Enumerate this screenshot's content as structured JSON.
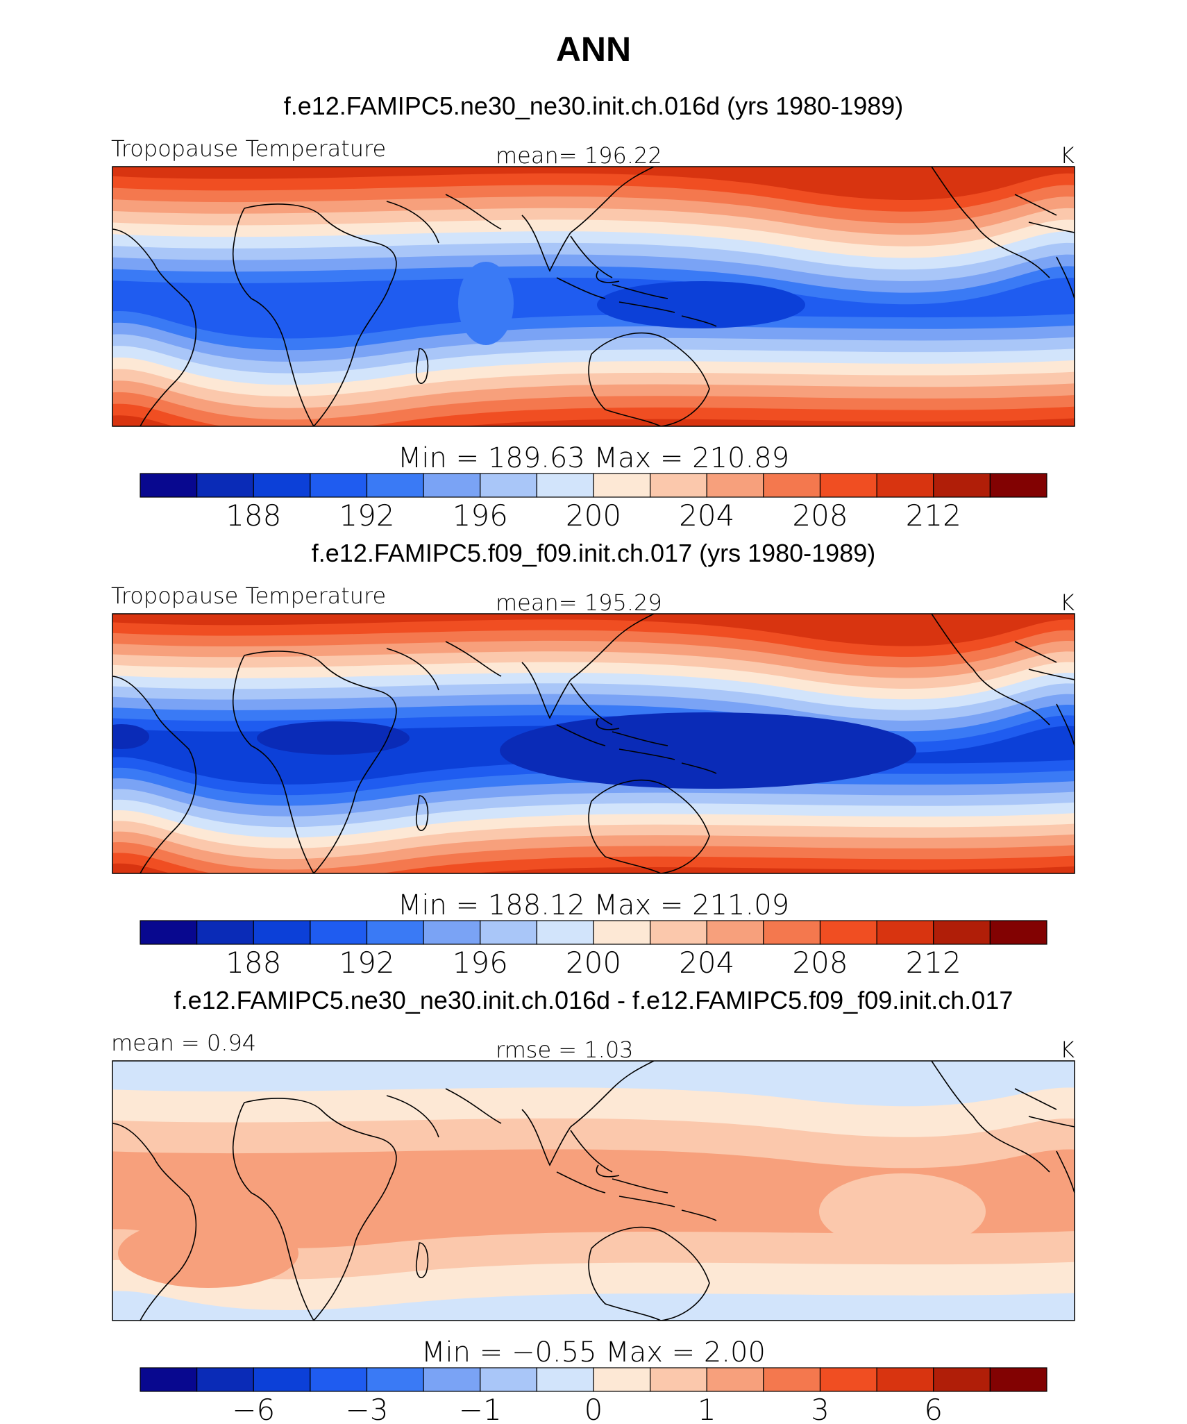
{
  "title": "ANN",
  "colors": [
    "#08088f",
    "#0a2bb7",
    "#0c40d8",
    "#1f5cf0",
    "#3a7af5",
    "#7aa3f5",
    "#a9c6f8",
    "#d2e4fb",
    "#fde8d5",
    "#fbc8ac",
    "#f7a07c",
    "#f4784e",
    "#f04e22",
    "#d83410",
    "#b01e08",
    "#820202"
  ],
  "panels": [
    {
      "title": "f.e12.FAMIPC5.ne30_ne30.init.ch.016d (yrs 1980-1989)",
      "left_label": "Tropopause Temperature",
      "center_label": "mean=  196.22",
      "units": "K",
      "minmax": "Min  =  189.63  Max  =  210.89",
      "colorbar_ticks": [
        "188",
        "192",
        "196",
        "200",
        "204",
        "208",
        "212"
      ],
      "field": {
        "eq_level": 3,
        "pole_n_level": 13,
        "pole_s_level": 13,
        "variant": "a"
      }
    },
    {
      "title": "f.e12.FAMIPC5.f09_f09.init.ch.017 (yrs 1980-1989)",
      "left_label": "Tropopause Temperature",
      "center_label": "mean=  195.29",
      "units": "K",
      "minmax": "Min  =  188.12  Max  =  211.09",
      "colorbar_ticks": [
        "188",
        "192",
        "196",
        "200",
        "204",
        "208",
        "212"
      ],
      "field": {
        "eq_level": 2,
        "pole_n_level": 13,
        "pole_s_level": 13,
        "variant": "b"
      }
    },
    {
      "title": "f.e12.FAMIPC5.ne30_ne30.init.ch.016d - f.e12.FAMIPC5.f09_f09.init.ch.017",
      "left_label": "mean  =    0.94",
      "center_label": "rmse  =    1.03",
      "units": "K",
      "minmax": "Min  =   −0.55  Max  =     2.00",
      "colorbar_ticks": [
        "−6",
        "−3",
        "−1",
        "0",
        "1",
        "3",
        "6"
      ],
      "field": {
        "eq_level": 10,
        "pole_n_level": 7,
        "pole_s_level": 8,
        "variant": "diff"
      }
    }
  ]
}
